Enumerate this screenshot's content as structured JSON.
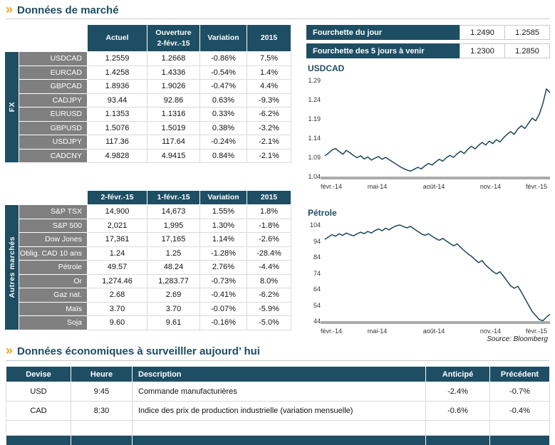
{
  "meta": {
    "chevron": "»"
  },
  "sections": {
    "market": {
      "title": "Données de marché"
    },
    "econ": {
      "title": "Données économiques à surveilller aujourd’ hui"
    },
    "source": "Source: Bloomberg"
  },
  "colors": {
    "navy": "#1D4E63",
    "label_gray": "#808080",
    "up_green": "#00A14B",
    "down_red": "#FE0000",
    "accent_orange": "#F5A623",
    "axis_gray": "#ABABAB",
    "line_navy": "#1A4458"
  },
  "fx_table": {
    "group": "FX",
    "headers": [
      [
        "Actuel"
      ],
      [
        "Ouverture",
        "2-févr.-15"
      ],
      [
        "Variation"
      ],
      [
        "2015"
      ]
    ],
    "rows": [
      {
        "label": "USDCAD",
        "values": [
          "1.2559",
          "1.2668"
        ],
        "variation": "-0.86%",
        "ytd": "7.5%"
      },
      {
        "label": "EURCAD",
        "values": [
          "1.4258",
          "1.4336"
        ],
        "variation": "-0.54%",
        "ytd": "1.4%"
      },
      {
        "label": "GBPCAD",
        "values": [
          "1.8936",
          "1.9026"
        ],
        "variation": "-0.47%",
        "ytd": "4.4%"
      },
      {
        "label": "CADJPY",
        "values": [
          "93.44",
          "92.86"
        ],
        "variation": "0.63%",
        "ytd": "-9.3%"
      },
      {
        "label": "EURUSD",
        "values": [
          "1.1353",
          "1.1316"
        ],
        "variation": "0.33%",
        "ytd": "-6.2%"
      },
      {
        "label": "GBPUSD",
        "values": [
          "1.5076",
          "1.5019"
        ],
        "variation": "0.38%",
        "ytd": "-3.2%"
      },
      {
        "label": "USDJPY",
        "values": [
          "117.36",
          "117.64"
        ],
        "variation": "-0.24%",
        "ytd": "-2.1%"
      },
      {
        "label": "CADCNY",
        "values": [
          "4.9828",
          "4.9415"
        ],
        "variation": "0.84%",
        "ytd": "-2.1%"
      }
    ]
  },
  "markets_table": {
    "group": "Autres marchés",
    "headers": [
      "2-févr.-15",
      "1-févr.-15",
      "Variation",
      "2015"
    ],
    "rows": [
      {
        "label": "S&P TSX",
        "values": [
          "14,900",
          "14,673"
        ],
        "variation": "1.55%",
        "ytd": "1.8%"
      },
      {
        "label": "S&P 500",
        "values": [
          "2,021",
          "1,995"
        ],
        "variation": "1.30%",
        "ytd": "-1.8%"
      },
      {
        "label": "Dow Jones",
        "values": [
          "17,361",
          "17,165"
        ],
        "variation": "1.14%",
        "ytd": "-2.6%"
      },
      {
        "label": "Oblig. CAD 10 ans",
        "values": [
          "1.24",
          "1.25"
        ],
        "variation": "-1.28%",
        "ytd": "-28.4%"
      },
      {
        "label": "Pétrole",
        "values": [
          "49.57",
          "48.24"
        ],
        "variation": "2.76%",
        "ytd": "-4.4%"
      },
      {
        "label": "Or",
        "values": [
          "1,274.46",
          "1,283.77"
        ],
        "variation": "-0.73%",
        "ytd": "8.0%"
      },
      {
        "label": "Gaz nat.",
        "values": [
          "2.68",
          "2.69"
        ],
        "variation": "-0.41%",
        "ytd": "-6.2%"
      },
      {
        "label": "Maïs",
        "values": [
          "3.70",
          "3.70"
        ],
        "variation": "-0.07%",
        "ytd": "-5.9%"
      },
      {
        "label": "Soja",
        "values": [
          "9.60",
          "9.61"
        ],
        "variation": "-0.16%",
        "ytd": "-5.0%"
      }
    ]
  },
  "ranges": [
    {
      "label": "Fourchette du jour",
      "low": "1.2490",
      "high": "1.2585"
    },
    {
      "label": "Fourchette des 5 jours à venir",
      "low": "1.2300",
      "high": "1.2850"
    }
  ],
  "econ_table": {
    "headers": [
      "Devise",
      "Heure",
      "Description",
      "Anticipé",
      "Précédent"
    ],
    "rows": [
      {
        "devise": "USD",
        "heure": "9:45",
        "description": "Commande manufacturières",
        "anticipe": "-2.4%",
        "precedent": "-0.7%"
      },
      {
        "devise": "CAD",
        "heure": "8:30",
        "description": "Indice des prix de production industrielle (variation mensuelle)",
        "anticipe": "-0.6%",
        "precedent": "-0.4%"
      },
      {
        "devise": "",
        "heure": "",
        "description": "",
        "anticipe": "",
        "precedent": ""
      }
    ]
  },
  "chart_data": [
    {
      "type": "line",
      "title": "USDCAD",
      "xlabel": "",
      "ylabel": "",
      "legend": "none",
      "grid": false,
      "ylim": [
        1.04,
        1.29
      ],
      "y_ticks": [
        "1.29",
        "1.24",
        "1.19",
        "1.14",
        "1.09",
        "1.04"
      ],
      "x_ticks": [
        "févr.-14",
        "mai-14",
        "août-14",
        "nov.-14",
        "févr.-15"
      ],
      "values": [
        1.094,
        1.101,
        1.109,
        1.113,
        1.105,
        1.098,
        1.108,
        1.102,
        1.095,
        1.089,
        1.094,
        1.086,
        1.091,
        1.083,
        1.088,
        1.092,
        1.085,
        1.09,
        1.084,
        1.078,
        1.072,
        1.066,
        1.061,
        1.057,
        1.054,
        1.059,
        1.064,
        1.06,
        1.068,
        1.074,
        1.07,
        1.078,
        1.085,
        1.08,
        1.089,
        1.095,
        1.09,
        1.099,
        1.106,
        1.1,
        1.111,
        1.119,
        1.112,
        1.121,
        1.129,
        1.122,
        1.132,
        1.126,
        1.136,
        1.13,
        1.141,
        1.15,
        1.157,
        1.15,
        1.164,
        1.172,
        1.165,
        1.179,
        1.192,
        1.185,
        1.202,
        1.23,
        1.268,
        1.258
      ]
    },
    {
      "type": "line",
      "title": "Pétrole",
      "xlabel": "",
      "ylabel": "",
      "legend": "none",
      "grid": false,
      "ylim": [
        44,
        104
      ],
      "y_ticks": [
        "104",
        "94",
        "84",
        "74",
        "64",
        "54",
        "44"
      ],
      "x_ticks": [
        "févr.-14",
        "mai-14",
        "août-14",
        "nov.-14",
        "févr.-15"
      ],
      "values": [
        95.0,
        96.5,
        98.0,
        97.0,
        98.5,
        97.5,
        99.0,
        98.0,
        97.2,
        98.5,
        99.5,
        98.6,
        100.0,
        99.0,
        100.5,
        101.5,
        100.4,
        102.0,
        101.0,
        102.5,
        103.5,
        104.0,
        103.0,
        102.2,
        103.2,
        101.5,
        100.0,
        98.5,
        97.5,
        98.6,
        97.0,
        95.5,
        94.5,
        95.6,
        94.0,
        92.5,
        91.0,
        92.2,
        90.0,
        88.0,
        86.0,
        84.5,
        82.5,
        80.5,
        81.8,
        79.0,
        77.0,
        75.0,
        73.5,
        74.8,
        72.0,
        69.0,
        66.0,
        64.5,
        65.8,
        62.0,
        58.0,
        54.0,
        50.0,
        47.5,
        45.0,
        44.2,
        46.5,
        48.3
      ]
    }
  ]
}
